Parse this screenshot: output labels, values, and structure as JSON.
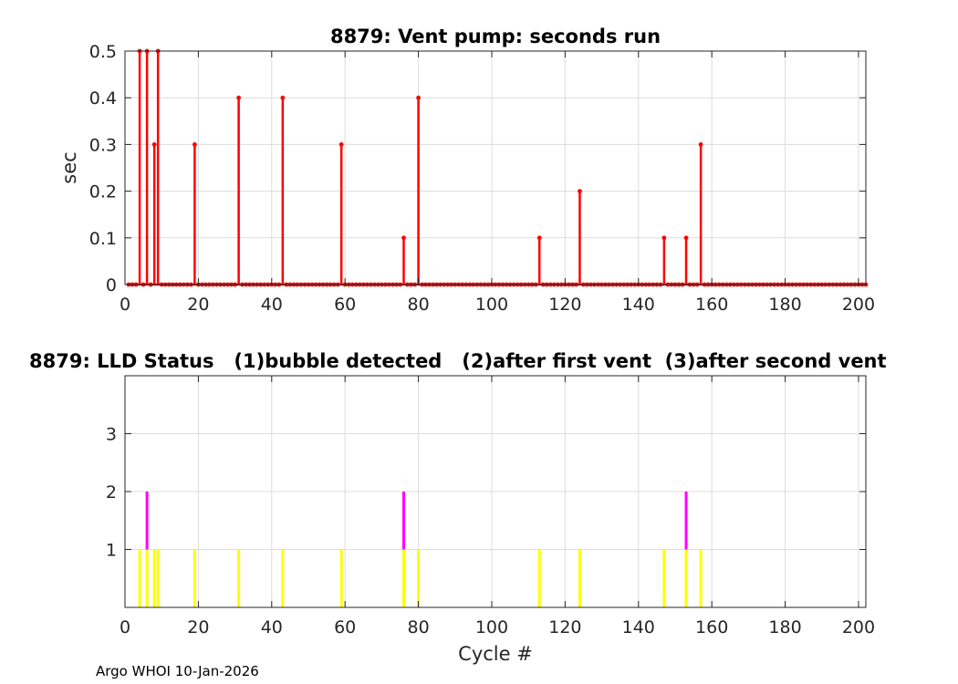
{
  "colors": {
    "vent_series": "#ff0000",
    "status_1": "#ffff00",
    "status_2": "#ff00ff",
    "status_3": "#00ffff"
  },
  "footer_text": "Argo WHOI 10-Jan-2026",
  "chart_data": [
    {
      "type": "line",
      "title": "8879: Vent pump: seconds run",
      "xlabel": "",
      "ylabel": "sec",
      "xlim": [
        0,
        202
      ],
      "ylim": [
        0,
        0.5
      ],
      "x_ticks": [
        0,
        20,
        40,
        60,
        80,
        100,
        120,
        140,
        160,
        180,
        200
      ],
      "y_ticks": [
        0,
        0.1,
        0.2,
        0.3,
        0.4,
        0.5
      ],
      "x_tick_labels": [
        "0",
        "20",
        "40",
        "60",
        "80",
        "100",
        "120",
        "140",
        "160",
        "180",
        "200"
      ],
      "y_tick_labels": [
        "0",
        "0.1",
        "0.2",
        "0.3",
        "0.4",
        "0.5"
      ],
      "grid": true,
      "x_range": [
        1,
        202
      ],
      "baseline_value": 0,
      "nonzero_points": [
        {
          "x": 4,
          "y": 0.5
        },
        {
          "x": 6,
          "y": 0.5
        },
        {
          "x": 8,
          "y": 0.3
        },
        {
          "x": 9,
          "y": 0.5
        },
        {
          "x": 19,
          "y": 0.3
        },
        {
          "x": 31,
          "y": 0.4
        },
        {
          "x": 43,
          "y": 0.4
        },
        {
          "x": 59,
          "y": 0.3
        },
        {
          "x": 76,
          "y": 0.1
        },
        {
          "x": 80,
          "y": 0.4
        },
        {
          "x": 113,
          "y": 0.1
        },
        {
          "x": 124,
          "y": 0.2
        },
        {
          "x": 147,
          "y": 0.1
        },
        {
          "x": 153,
          "y": 0.1
        },
        {
          "x": 157,
          "y": 0.3
        }
      ]
    },
    {
      "type": "bar",
      "title": "8879: LLD Status   (1)bubble detected   (2)after first vent  (3)after second vent",
      "xlabel": "Cycle #",
      "ylabel": "",
      "xlim": [
        0,
        202
      ],
      "ylim": [
        0,
        4
      ],
      "x_ticks": [
        0,
        20,
        40,
        60,
        80,
        100,
        120,
        140,
        160,
        180,
        200
      ],
      "y_ticks": [
        1,
        2,
        3
      ],
      "x_tick_labels": [
        "0",
        "20",
        "40",
        "60",
        "80",
        "100",
        "120",
        "140",
        "160",
        "180",
        "200"
      ],
      "y_tick_labels": [
        "1",
        "2",
        "3"
      ],
      "grid": true,
      "points": [
        {
          "x": 4,
          "status": 1
        },
        {
          "x": 6,
          "status": 2
        },
        {
          "x": 8,
          "status": 1
        },
        {
          "x": 9,
          "status": 1
        },
        {
          "x": 19,
          "status": 1
        },
        {
          "x": 31,
          "status": 1
        },
        {
          "x": 43,
          "status": 1
        },
        {
          "x": 59,
          "status": 1
        },
        {
          "x": 76,
          "status": 2
        },
        {
          "x": 80,
          "status": 1
        },
        {
          "x": 113,
          "status": 1
        },
        {
          "x": 124,
          "status": 1
        },
        {
          "x": 147,
          "status": 1
        },
        {
          "x": 153,
          "status": 2
        },
        {
          "x": 157,
          "status": 1
        }
      ]
    }
  ]
}
